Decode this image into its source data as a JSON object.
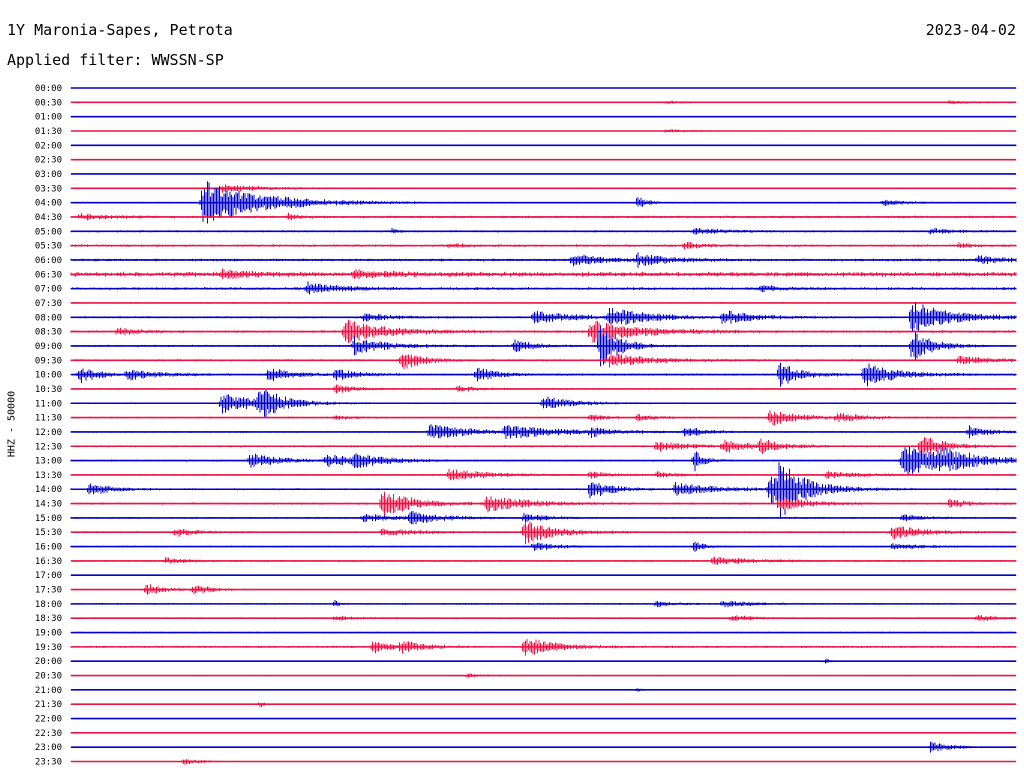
{
  "header": {
    "station": "1Y Maronia-Sapes, Petrota",
    "date": "2023-04-02",
    "filter": "Applied filter: WWSSN-SP"
  },
  "chart_data": {
    "type": "line",
    "ylabel": "HHZ - 50000",
    "colors": {
      "even_row": "#0000cc",
      "odd_row": "#ee1144"
    },
    "rows": [
      "00:00",
      "00:30",
      "01:00",
      "01:30",
      "02:00",
      "02:30",
      "03:00",
      "03:30",
      "04:00",
      "04:30",
      "05:00",
      "05:30",
      "06:00",
      "06:30",
      "07:00",
      "07:30",
      "08:00",
      "08:30",
      "09:00",
      "09:30",
      "10:00",
      "10:30",
      "11:00",
      "11:30",
      "12:00",
      "12:30",
      "13:00",
      "13:30",
      "14:00",
      "14:30",
      "15:00",
      "15:30",
      "16:00",
      "16:30",
      "17:00",
      "17:30",
      "18:00",
      "18:30",
      "19:00",
      "19:30",
      "20:00",
      "20:30",
      "21:00",
      "21:30",
      "22:00",
      "22:30",
      "23:00",
      "23:30"
    ],
    "noise": [
      0.5,
      0.6,
      0.5,
      0.6,
      0.7,
      0.4,
      0.4,
      0.8,
      0.9,
      1.4,
      1.2,
      1.4,
      1.5,
      2.6,
      1.6,
      0.8,
      1.2,
      1.4,
      1.2,
      1.3,
      1.3,
      1.0,
      0.9,
      0.9,
      1.0,
      1.2,
      1.1,
      1.0,
      1.1,
      1.2,
      1.1,
      1.1,
      1.0,
      1.0,
      0.5,
      0.6,
      1.0,
      1.0,
      1.0,
      1.2,
      0.7,
      0.6,
      0.6,
      0.6,
      0.5,
      0.6,
      0.6,
      0.5
    ],
    "events": [
      [
        1,
        0.63,
        1.5,
        0.02
      ],
      [
        1,
        0.93,
        1.5,
        0.03
      ],
      [
        3,
        0.63,
        2,
        0.02
      ],
      [
        7,
        0.16,
        4,
        0.04
      ],
      [
        8,
        0.14,
        22,
        0.06
      ],
      [
        8,
        0.6,
        6,
        0.01
      ],
      [
        8,
        0.86,
        3,
        0.02
      ],
      [
        9,
        0.01,
        3,
        0.03
      ],
      [
        9,
        0.23,
        3,
        0.01
      ],
      [
        10,
        0.34,
        3,
        0.005
      ],
      [
        10,
        0.66,
        3,
        0.03
      ],
      [
        10,
        0.91,
        3,
        0.02
      ],
      [
        11,
        0.4,
        2,
        0.02
      ],
      [
        11,
        0.65,
        3,
        0.02
      ],
      [
        11,
        0.94,
        3,
        0.01
      ],
      [
        12,
        0.53,
        6,
        0.03
      ],
      [
        12,
        0.6,
        6,
        0.03
      ],
      [
        12,
        0.96,
        4,
        0.03
      ],
      [
        13,
        0.16,
        4,
        0.03
      ],
      [
        13,
        0.3,
        3,
        0.04
      ],
      [
        14,
        0.25,
        6,
        0.03
      ],
      [
        14,
        0.73,
        3,
        0.02
      ],
      [
        16,
        0.31,
        4,
        0.03
      ],
      [
        16,
        0.49,
        6,
        0.04
      ],
      [
        16,
        0.57,
        9,
        0.04
      ],
      [
        16,
        0.69,
        7,
        0.03
      ],
      [
        16,
        0.89,
        16,
        0.04
      ],
      [
        17,
        0.05,
        4,
        0.02
      ],
      [
        17,
        0.29,
        12,
        0.04
      ],
      [
        17,
        0.55,
        11,
        0.05
      ],
      [
        18,
        0.3,
        9,
        0.03
      ],
      [
        18,
        0.47,
        6,
        0.02
      ],
      [
        18,
        0.56,
        22,
        0.02
      ],
      [
        18,
        0.89,
        16,
        0.02
      ],
      [
        19,
        0.35,
        10,
        0.02
      ],
      [
        19,
        0.57,
        7,
        0.04
      ],
      [
        19,
        0.94,
        4,
        0.03
      ],
      [
        20,
        0.01,
        8,
        0.02
      ],
      [
        20,
        0.06,
        5,
        0.03
      ],
      [
        20,
        0.21,
        8,
        0.02
      ],
      [
        20,
        0.28,
        6,
        0.02
      ],
      [
        20,
        0.43,
        7,
        0.02
      ],
      [
        20,
        0.75,
        12,
        0.02
      ],
      [
        20,
        0.84,
        12,
        0.03
      ],
      [
        21,
        0.28,
        4,
        0.02
      ],
      [
        21,
        0.41,
        3,
        0.02
      ],
      [
        22,
        0.16,
        10,
        0.04
      ],
      [
        22,
        0.2,
        16,
        0.02
      ],
      [
        22,
        0.5,
        7,
        0.03
      ],
      [
        23,
        0.28,
        2,
        0.02
      ],
      [
        23,
        0.55,
        3,
        0.02
      ],
      [
        23,
        0.6,
        3,
        0.02
      ],
      [
        23,
        0.74,
        8,
        0.03
      ],
      [
        23,
        0.81,
        4,
        0.03
      ],
      [
        24,
        0.38,
        8,
        0.04
      ],
      [
        24,
        0.46,
        6,
        0.06
      ],
      [
        24,
        0.55,
        4,
        0.02
      ],
      [
        24,
        0.65,
        5,
        0.02
      ],
      [
        24,
        0.95,
        6,
        0.02
      ],
      [
        25,
        0.62,
        5,
        0.03
      ],
      [
        25,
        0.69,
        6,
        0.03
      ],
      [
        25,
        0.73,
        6,
        0.02
      ],
      [
        25,
        0.9,
        14,
        0.02
      ],
      [
        26,
        0.19,
        7,
        0.03
      ],
      [
        26,
        0.27,
        6,
        0.03
      ],
      [
        26,
        0.3,
        6,
        0.03
      ],
      [
        26,
        0.66,
        10,
        0.01
      ],
      [
        26,
        0.88,
        16,
        0.05
      ],
      [
        26,
        0.92,
        8,
        0.03
      ],
      [
        27,
        0.4,
        6,
        0.04
      ],
      [
        27,
        0.55,
        3,
        0.02
      ],
      [
        27,
        0.62,
        3,
        0.02
      ],
      [
        27,
        0.8,
        3,
        0.04
      ],
      [
        28,
        0.02,
        7,
        0.02
      ],
      [
        28,
        0.55,
        10,
        0.02
      ],
      [
        28,
        0.64,
        7,
        0.04
      ],
      [
        28,
        0.74,
        14,
        0.04
      ],
      [
        28,
        0.75,
        20,
        0.02
      ],
      [
        29,
        0.33,
        14,
        0.03
      ],
      [
        29,
        0.44,
        8,
        0.04
      ],
      [
        29,
        0.75,
        7,
        0.03
      ],
      [
        29,
        0.93,
        4,
        0.02
      ],
      [
        30,
        0.31,
        4,
        0.03
      ],
      [
        30,
        0.36,
        6,
        0.03
      ],
      [
        30,
        0.48,
        5,
        0.02
      ],
      [
        30,
        0.88,
        3,
        0.02
      ],
      [
        31,
        0.11,
        5,
        0.02
      ],
      [
        31,
        0.33,
        4,
        0.03
      ],
      [
        31,
        0.48,
        12,
        0.03
      ],
      [
        31,
        0.87,
        7,
        0.03
      ],
      [
        32,
        0.49,
        5,
        0.02
      ],
      [
        32,
        0.66,
        5,
        0.01
      ],
      [
        32,
        0.87,
        3,
        0.03
      ],
      [
        33,
        0.1,
        3,
        0.02
      ],
      [
        33,
        0.68,
        4,
        0.04
      ],
      [
        35,
        0.08,
        6,
        0.02
      ],
      [
        35,
        0.13,
        5,
        0.02
      ],
      [
        36,
        0.28,
        4,
        0.003
      ],
      [
        36,
        0.62,
        3,
        0.02
      ],
      [
        36,
        0.69,
        3,
        0.03
      ],
      [
        37,
        0.28,
        2,
        0.02
      ],
      [
        37,
        0.7,
        3,
        0.02
      ],
      [
        37,
        0.96,
        3,
        0.02
      ],
      [
        39,
        0.32,
        6,
        0.02
      ],
      [
        39,
        0.35,
        6,
        0.02
      ],
      [
        39,
        0.48,
        10,
        0.03
      ],
      [
        40,
        0.8,
        3,
        0.003
      ],
      [
        41,
        0.42,
        2,
        0.02
      ],
      [
        42,
        0.6,
        2,
        0.005
      ],
      [
        43,
        0.2,
        3,
        0.005
      ],
      [
        46,
        0.91,
        6,
        0.02
      ],
      [
        47,
        0.12,
        3,
        0.02
      ]
    ]
  }
}
